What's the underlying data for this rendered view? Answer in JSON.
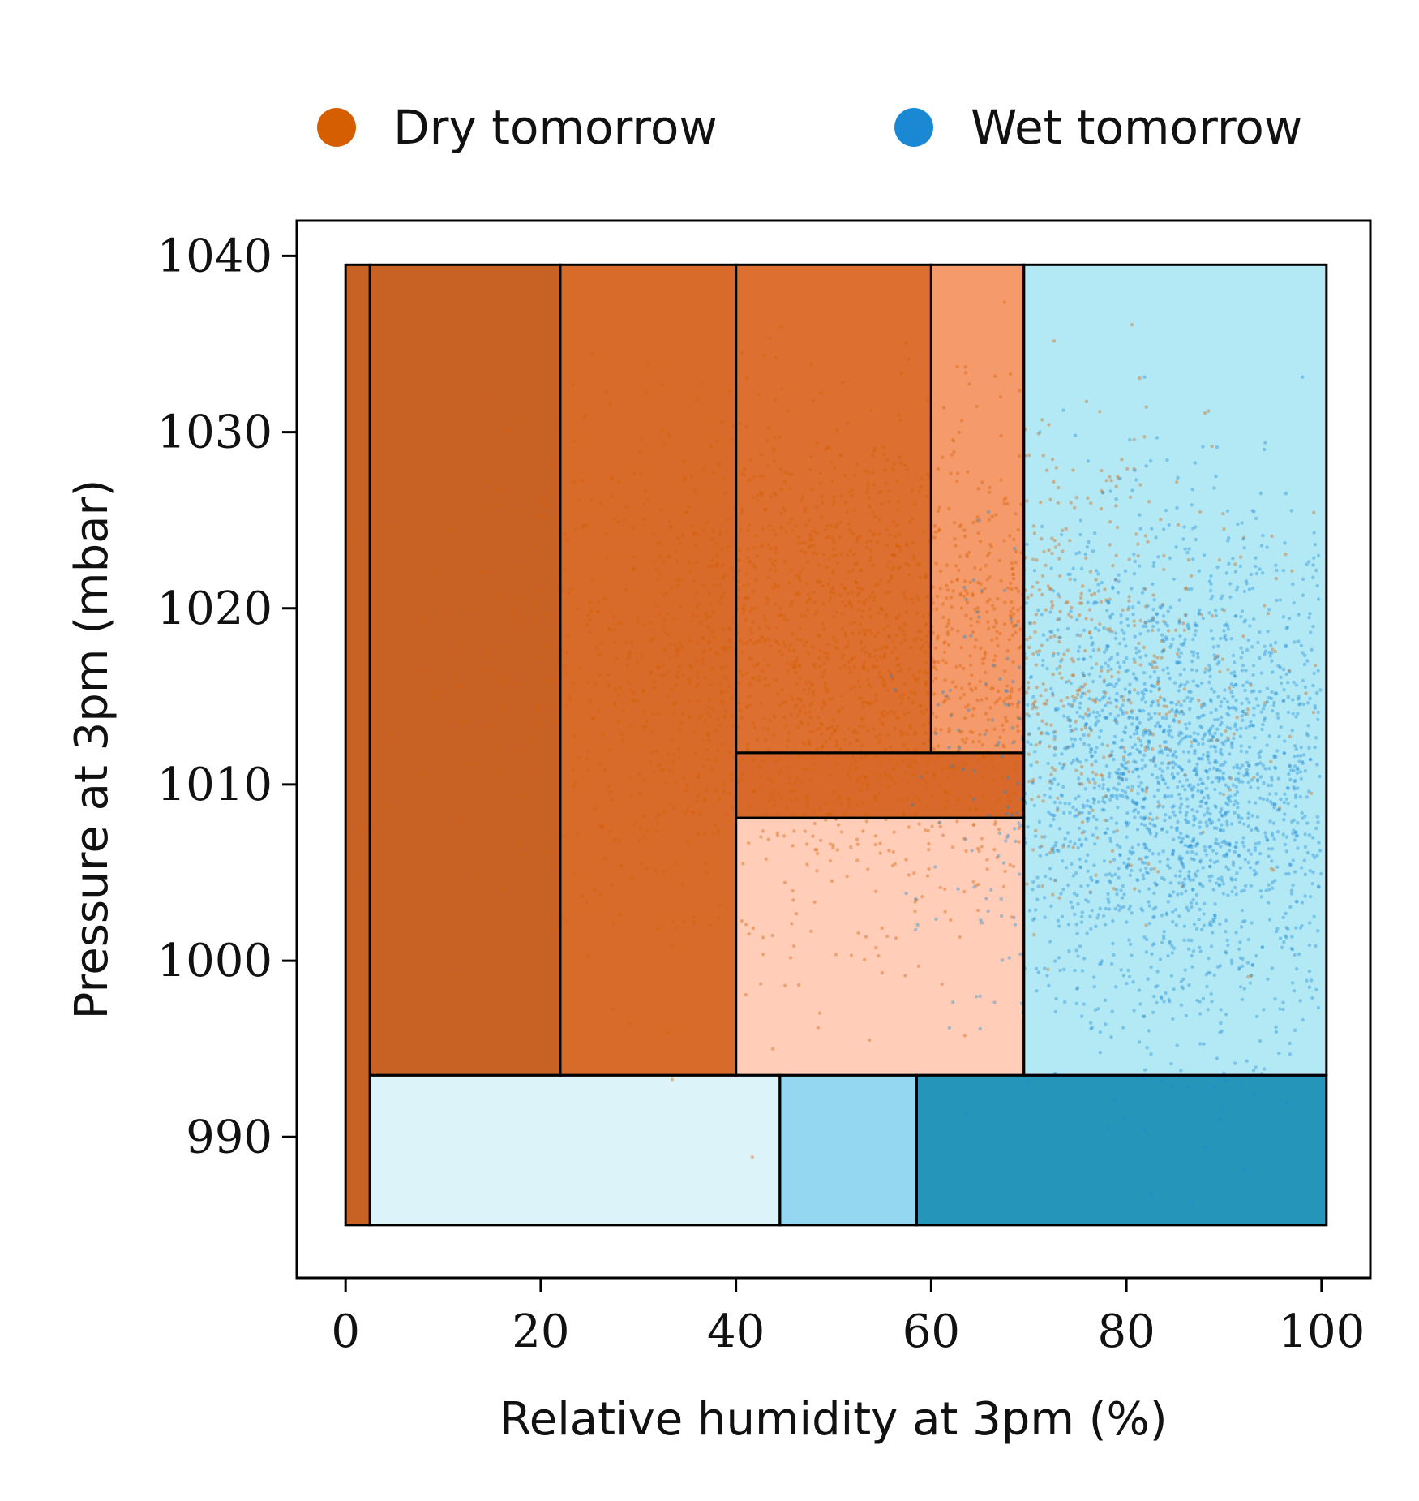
{
  "chart_data": {
    "type": "scatter",
    "title": "",
    "xlabel": "Relative humidity at 3pm (%)",
    "ylabel": "Pressure at 3pm (mbar)",
    "xlim": [
      -5,
      105
    ],
    "ylim": [
      982,
      1042
    ],
    "x_ticks": [
      0,
      20,
      40,
      60,
      80,
      100
    ],
    "y_ticks": [
      990,
      1000,
      1010,
      1020,
      1030,
      1040
    ],
    "legend_placement": "top-center, above plot",
    "series": [
      {
        "name": "Dry tomorrow",
        "color": "#d55e00"
      },
      {
        "name": "Wet tomorrow",
        "color": "#1b88d4"
      }
    ],
    "point_clouds": [
      {
        "series": "Dry tomorrow",
        "x_mean": 52,
        "x_sd": 18,
        "y_mean": 1017,
        "y_sd": 7,
        "x_range": [
          0,
          100
        ],
        "y_range": [
          985,
          1039
        ]
      },
      {
        "series": "Wet tomorrow",
        "x_mean": 86,
        "x_sd": 10,
        "y_mean": 1010,
        "y_sd": 7,
        "x_range": [
          20,
          100
        ],
        "y_range": [
          985,
          1039
        ]
      }
    ],
    "decision_regions": [
      {
        "x": [
          0,
          2.5
        ],
        "y": [
          985,
          1039.5
        ],
        "class": "Dry tomorrow",
        "fill": "#c86224"
      },
      {
        "x": [
          2.5,
          22
        ],
        "y": [
          993.5,
          1039.5
        ],
        "class": "Dry tomorrow",
        "fill": "#c86224"
      },
      {
        "x": [
          22,
          40
        ],
        "y": [
          993.5,
          1039.5
        ],
        "class": "Dry tomorrow",
        "fill": "#d86a2a"
      },
      {
        "x": [
          40,
          60
        ],
        "y": [
          1011.8,
          1039.5
        ],
        "class": "Dry tomorrow",
        "fill": "#dd6f30"
      },
      {
        "x": [
          60,
          69.5
        ],
        "y": [
          1011.8,
          1039.5
        ],
        "class": "Dry tomorrow",
        "fill": "#f59a6a"
      },
      {
        "x": [
          40,
          69.5
        ],
        "y": [
          1008.1,
          1011.8
        ],
        "class": "Dry tomorrow",
        "fill": "#d9692a"
      },
      {
        "x": [
          40,
          69.5
        ],
        "y": [
          993.5,
          1008.1
        ],
        "class": "Dry tomorrow",
        "fill": "#ffcdb8"
      },
      {
        "x": [
          69.5,
          100.5
        ],
        "y": [
          993.5,
          1039.5
        ],
        "class": "Wet tomorrow",
        "fill": "#b3e8f5"
      },
      {
        "x": [
          2.5,
          44.5
        ],
        "y": [
          985,
          993.5
        ],
        "class": "Wet tomorrow",
        "fill": "#dcf3fa"
      },
      {
        "x": [
          44.5,
          58.5
        ],
        "y": [
          985,
          993.5
        ],
        "class": "Wet tomorrow",
        "fill": "#93d8f0"
      },
      {
        "x": [
          58.5,
          100.5
        ],
        "y": [
          985,
          993.5
        ],
        "class": "Wet tomorrow",
        "fill": "#2595ba"
      }
    ]
  }
}
